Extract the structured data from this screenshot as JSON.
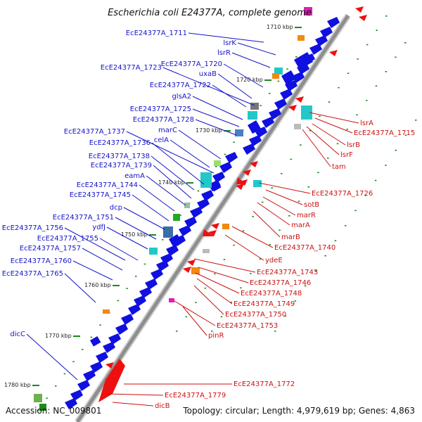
{
  "title": "Escherichia coli E24377A, complete genome",
  "footer": {
    "accession": "Accession: NC_009801",
    "summary": "Topology: circular; Length: 4,979,619 bp; Genes: 4,863"
  },
  "colors": {
    "backbone": "#9a9a9a",
    "plus_strand_label": "#1414c8",
    "minus_strand_label": "#cc1111",
    "plus_strand_feature": "#1010e0",
    "minus_strand_feature": "#ee1010",
    "tick": "#1a8a1a"
  },
  "ticks": [
    {
      "label": "1710 kbp",
      "kbp": 1710
    },
    {
      "label": "1720 kbp",
      "kbp": 1720
    },
    {
      "label": "1730 kbp",
      "kbp": 1730
    },
    {
      "label": "1740 kbp",
      "kbp": 1740
    },
    {
      "label": "1750 kbp",
      "kbp": 1750
    },
    {
      "label": "1760 kbp",
      "kbp": 1760
    },
    {
      "label": "1770 kbp",
      "kbp": 1770
    },
    {
      "label": "1780 kbp",
      "kbp": 1780
    }
  ],
  "plus_strand_labels": [
    "EcE24377A_1711",
    "lsrK",
    "lsrR",
    "EcE24377A_1723",
    "EcE24377A_1720",
    "uxaB",
    "EcE24377A_1722",
    "glsA2",
    "EcE24377A_1725",
    "EcE24377A_1728",
    "EcE24377A_1737",
    "marC",
    "EcE24377A_1736",
    "celA",
    "EcE24377A_1738",
    "EcE24377A_1739",
    "eamA",
    "EcE24377A_1744",
    "EcE24377A_1745",
    "dcp",
    "EcE24377A_1751",
    "ydfJ",
    "EcE24377A_1756",
    "EcE24377A_1755",
    "EcE24377A_1757",
    "EcE24377A_1760",
    "EcE24377A_1765",
    "dicC"
  ],
  "minus_strand_labels": [
    "lsrA",
    "EcE24377A_1715",
    "lsrB",
    "lsrF",
    "tam",
    "EcE24377A_1726",
    "sotB",
    "marR",
    "marA",
    "marB",
    "EcE24377A_1740",
    "ydeE",
    "EcE24377A_1743",
    "EcE24377A_1746",
    "EcE24377A_1748",
    "EcE24377A_1749",
    "EcE24377A_1750",
    "EcE24377A_1753",
    "pinR",
    "EcE24377A_1772",
    "EcE24377A_1779",
    "dicB"
  ]
}
